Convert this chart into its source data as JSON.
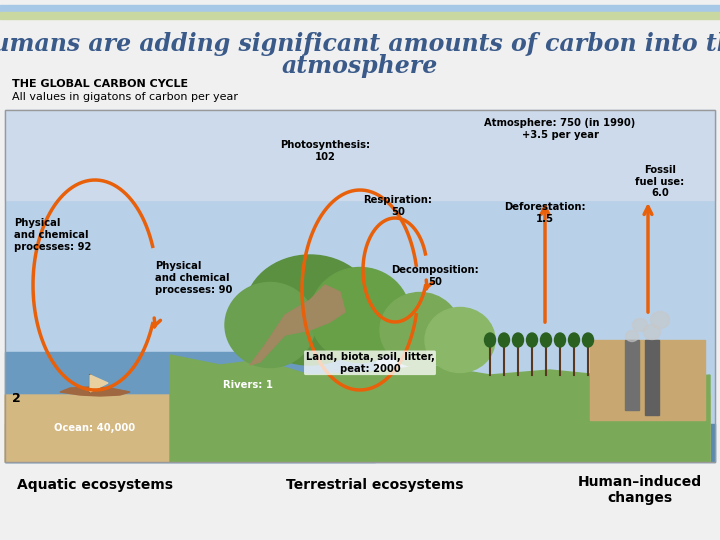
{
  "title_line1": "Humans are adding significant amounts of carbon into the",
  "title_line2": "atmosphere",
  "subtitle1": "THE GLOBAL CARBON CYCLE",
  "subtitle2": "All values in gigatons of carbon per year",
  "title_color": "#3a5a8a",
  "bg_color": "#f0f0f0",
  "header_stripe1_color": "#a8c8e8",
  "header_stripe2_color": "#c8d8a0",
  "arrow_color": "#e8600a",
  "atm_label": "Atmosphere: 750 (in 1990)\n+3.5 per year",
  "photo_label": "Photosynthesis:\n102",
  "resp_label": "Respiration:\n50",
  "decomp_label": "Decomposition:\n50",
  "phys92_label": "Physical\nand chemical\nprocesses: 92",
  "phys90_label": "Physical\nand chemical\nprocesses: 90",
  "defor_label": "Deforestation:\n1.5",
  "fossil_label": "Fossil\nfuel use:\n6.0",
  "ocean_label": "Ocean: 40,000",
  "land_label": "Land, biota, soil, litter,\npeat: 2000",
  "rivers_label": "Rivers: 1",
  "two_label": "2",
  "aquatic_label": "Aquatic ecosystems",
  "terrestrial_label": "Terrestrial ecosystems",
  "human_label": "Human–induced\nchanges"
}
